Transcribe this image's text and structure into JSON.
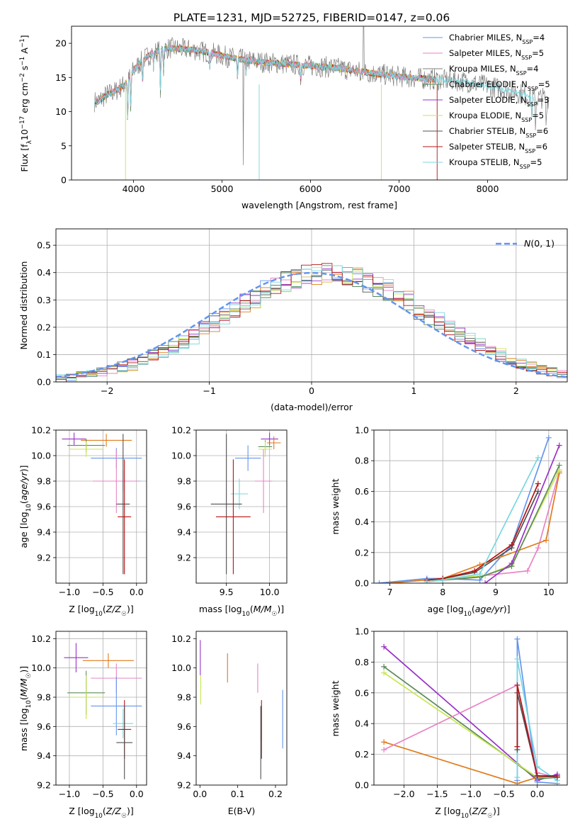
{
  "colors": {
    "chabrier_miles": "#6495ed",
    "salpeter_miles": "#e883c4",
    "kroupa_miles": "#7f7f7f",
    "chabrier_elodie": "#5b8a5b",
    "salpeter_elodie": "#9a32c8",
    "kroupa_elodie": "#c8e650",
    "chabrier_stelib": "#505050",
    "salpeter_stelib": "#b41414",
    "kroupa_stelib": "#78d7e1",
    "orange": "#e07b1c"
  },
  "chart_data": [
    {
      "id": "spectrum",
      "type": "line",
      "title": "PLATE=1231, MJD=52725, FIBERID=0147, z=0.06",
      "xlabel": "wavelength [Angstrom, rest frame]",
      "ylabel": "Flux [f_λ10^-17 erg cm^-2 s^-1 A^-1]",
      "xlim": [
        3300,
        8900
      ],
      "ylim": [
        0,
        22.5
      ],
      "xticks": [
        4000,
        5000,
        6000,
        7000,
        8000
      ],
      "yticks": [
        0,
        5,
        10,
        15,
        20
      ],
      "legend": "top-right",
      "series": [
        {
          "name": "Chabrier MILES, N",
          "sub": "SSP",
          "suffix": "=4",
          "color_key": "chabrier_miles"
        },
        {
          "name": "Salpeter MILES, N",
          "sub": "SSP",
          "suffix": "=5",
          "color_key": "salpeter_miles"
        },
        {
          "name": "Kroupa MILES, N",
          "sub": "SSP",
          "suffix": "=4",
          "color_key": "kroupa_miles"
        },
        {
          "name": "Chabrier ELODIE, N",
          "sub": "SSP",
          "suffix": "=5",
          "color_key": "chabrier_elodie"
        },
        {
          "name": "Salpeter ELODIE, N",
          "sub": "SSP",
          "suffix": "=3",
          "color_key": "salpeter_elodie"
        },
        {
          "name": "Kroupa ELODIE, N",
          "sub": "SSP",
          "suffix": "=5",
          "color_key": "kroupa_elodie"
        },
        {
          "name": "Chabrier STELIB, N",
          "sub": "SSP",
          "suffix": "=6",
          "color_key": "chabrier_stelib"
        },
        {
          "name": "Salpeter STELIB, N",
          "sub": "SSP",
          "suffix": "=6",
          "color_key": "salpeter_stelib"
        },
        {
          "name": "Kroupa STELIB, N",
          "sub": "SSP",
          "suffix": "=5",
          "color_key": "kroupa_stelib"
        }
      ],
      "continuum": [
        [
          3600,
          11.5
        ],
        [
          3700,
          12.5
        ],
        [
          3800,
          13
        ],
        [
          3900,
          14
        ],
        [
          4000,
          16
        ],
        [
          4100,
          17.5
        ],
        [
          4200,
          18.5
        ],
        [
          4300,
          19
        ],
        [
          4400,
          19.3
        ],
        [
          4500,
          19.2
        ],
        [
          4700,
          19
        ],
        [
          4900,
          18.5
        ],
        [
          5100,
          17.9
        ],
        [
          5300,
          17.5
        ],
        [
          5500,
          17.2
        ],
        [
          5700,
          17
        ],
        [
          5900,
          16.8
        ],
        [
          6100,
          16.6
        ],
        [
          6300,
          16.4
        ],
        [
          6500,
          16
        ],
        [
          6700,
          15.6
        ],
        [
          6900,
          15.3
        ],
        [
          7100,
          15
        ],
        [
          7300,
          14.8
        ],
        [
          7500,
          14.6
        ],
        [
          7700,
          14.5
        ],
        [
          7900,
          14
        ],
        [
          8100,
          13.5
        ],
        [
          8300,
          13
        ],
        [
          8500,
          12
        ]
      ]
    },
    {
      "id": "residuals",
      "type": "line",
      "xlabel": "(data-model)/error",
      "ylabel": "Normed distribution",
      "xlim": [
        -2.5,
        2.5
      ],
      "ylim": [
        0,
        0.56
      ],
      "xticks": [
        -2,
        -1,
        0,
        1,
        2
      ],
      "yticks": [
        0.0,
        0.1,
        0.2,
        0.3,
        0.4,
        0.5
      ],
      "grid": true,
      "legend": "top-right",
      "gaussian_label": "N(0,1)",
      "gaussian_mean": 0,
      "gaussian_sigma": 1,
      "bin_width": 0.1
    },
    {
      "id": "age_vs_Z",
      "type": "scatter",
      "xlabel": "Z [log10(Z/Z☉)]",
      "ylabel": "age  [log10(age/yr)]",
      "xlim": [
        -1.2,
        0.15
      ],
      "ylim": [
        9.0,
        10.2
      ],
      "xticks": [
        -1.0,
        -0.5,
        0.0
      ],
      "yticks": [
        9.2,
        9.4,
        9.6,
        9.8,
        10.0,
        10.2
      ],
      "grid": true,
      "points": [
        {
          "x": -0.93,
          "y": 10.13,
          "xerr": 0.18,
          "yerr": 0.05,
          "color_key": "salpeter_elodie"
        },
        {
          "x": -0.45,
          "y": 10.12,
          "xerr": 0.38,
          "yerr": 0.05,
          "color_key": "orange"
        },
        {
          "x": -0.75,
          "y": 10.08,
          "xerr": 0.28,
          "yerr": 0.05,
          "color_key": "chabrier_elodie"
        },
        {
          "x": -0.75,
          "y": 10.05,
          "xerr": 0.25,
          "yerr": 0.06,
          "color_key": "kroupa_elodie"
        },
        {
          "x": -0.3,
          "y": 9.98,
          "xerr": 0.38,
          "yerr": 0.08,
          "color_key": "chabrier_miles"
        },
        {
          "x": -0.2,
          "y": 9.8,
          "xerr": 0.28,
          "yerr": 0.08,
          "color_key": "kroupa_stelib"
        },
        {
          "x": -0.3,
          "y": 9.8,
          "xerr": 0.35,
          "yerr": 0.25,
          "color_key": "salpeter_miles"
        },
        {
          "x": -0.2,
          "y": 9.62,
          "xerr": 0.1,
          "yerr": 0.55,
          "color_key": "chabrier_stelib"
        },
        {
          "x": -0.18,
          "y": 9.52,
          "xerr": 0.1,
          "yerr": 0.45,
          "color_key": "salpeter_stelib"
        }
      ]
    },
    {
      "id": "age_vs_mass",
      "type": "scatter",
      "xlabel": "mass [log10(M/M☉)]",
      "ylabel": "",
      "xlim": [
        9.15,
        10.2
      ],
      "ylim": [
        9.0,
        10.2
      ],
      "xticks": [
        9.5,
        10.0
      ],
      "yticks": [
        9.2,
        9.4,
        9.6,
        9.8,
        10.0,
        10.2
      ],
      "grid": true,
      "points": [
        {
          "x": 10.0,
          "y": 10.13,
          "xerr": 0.1,
          "yerr": 0.05,
          "color_key": "salpeter_elodie"
        },
        {
          "x": 10.05,
          "y": 10.1,
          "xerr": 0.08,
          "yerr": 0.05,
          "color_key": "orange"
        },
        {
          "x": 9.95,
          "y": 10.07,
          "xerr": 0.08,
          "yerr": 0.05,
          "color_key": "chabrier_elodie"
        },
        {
          "x": 9.95,
          "y": 10.05,
          "xerr": 0.08,
          "yerr": 0.06,
          "color_key": "kroupa_elodie"
        },
        {
          "x": 9.75,
          "y": 9.98,
          "xerr": 0.15,
          "yerr": 0.1,
          "color_key": "chabrier_miles"
        },
        {
          "x": 9.65,
          "y": 9.7,
          "xerr": 0.1,
          "yerr": 0.12,
          "color_key": "kroupa_stelib"
        },
        {
          "x": 9.93,
          "y": 9.8,
          "xerr": 0.1,
          "yerr": 0.25,
          "color_key": "salpeter_miles"
        },
        {
          "x": 9.5,
          "y": 9.62,
          "xerr": 0.18,
          "yerr": 0.55,
          "color_key": "chabrier_stelib"
        },
        {
          "x": 9.58,
          "y": 9.52,
          "xerr": 0.2,
          "yerr": 0.45,
          "color_key": "salpeter_stelib"
        }
      ]
    },
    {
      "id": "massweight_vs_age",
      "type": "line",
      "xlabel": "age  [log10(age/yr)]",
      "ylabel": "mass weight",
      "xlim": [
        6.7,
        10.35
      ],
      "ylim": [
        0.0,
        1.0
      ],
      "xticks": [
        7,
        8,
        9,
        10
      ],
      "yticks": [
        0.0,
        0.2,
        0.4,
        0.6,
        0.8,
        1.0
      ],
      "grid": true,
      "series": [
        {
          "color_key": "chabrier_miles",
          "x": [
            6.8,
            7.7,
            8.0,
            8.7,
            9.3,
            10.0
          ],
          "y": [
            0.0,
            0.03,
            0.03,
            0.02,
            0.25,
            0.95
          ]
        },
        {
          "color_key": "salpeter_miles",
          "x": [
            7.7,
            8.0,
            8.8,
            9.6,
            9.8,
            10.2
          ],
          "y": [
            0.02,
            0.02,
            0.05,
            0.08,
            0.23,
            0.73
          ]
        },
        {
          "color_key": "orange",
          "x": [
            7.0,
            8.0,
            8.7,
            9.95,
            10.2
          ],
          "y": [
            0.0,
            0.03,
            0.12,
            0.28,
            0.72
          ]
        },
        {
          "color_key": "kroupa_elodie",
          "x": [
            7.7,
            8.0,
            8.8,
            9.3,
            10.2
          ],
          "y": [
            0.01,
            0.03,
            0.05,
            0.12,
            0.74
          ]
        },
        {
          "color_key": "chabrier_elodie",
          "x": [
            7.7,
            8.7,
            9.3,
            10.2
          ],
          "y": [
            0.01,
            0.04,
            0.11,
            0.77
          ]
        },
        {
          "color_key": "salpeter_elodie",
          "x": [
            8.8,
            9.3,
            10.2
          ],
          "y": [
            0.0,
            0.13,
            0.9
          ]
        },
        {
          "color_key": "chabrier_stelib",
          "x": [
            7.7,
            8.0,
            8.6,
            9.3,
            9.8
          ],
          "y": [
            0.02,
            0.03,
            0.07,
            0.23,
            0.6
          ]
        },
        {
          "color_key": "salpeter_stelib",
          "x": [
            7.7,
            8.0,
            8.6,
            9.3,
            9.8
          ],
          "y": [
            0.02,
            0.03,
            0.08,
            0.25,
            0.65
          ]
        },
        {
          "color_key": "kroupa_stelib",
          "x": [
            7.7,
            8.0,
            8.7,
            9.8
          ],
          "y": [
            0.01,
            0.02,
            0.06,
            0.82
          ]
        }
      ]
    },
    {
      "id": "mass_vs_Z",
      "type": "scatter",
      "xlabel": "Z [log10(Z/Z☉)]",
      "ylabel": "mass [log10(M/M☉)]",
      "xlim": [
        -1.2,
        0.15
      ],
      "ylim": [
        9.2,
        10.25
      ],
      "xticks": [
        -1.0,
        -0.5,
        0.0
      ],
      "yticks": [
        9.2,
        9.4,
        9.6,
        9.8,
        10.0,
        10.2
      ],
      "grid": true,
      "points": [
        {
          "x": -0.9,
          "y": 10.07,
          "xerr": 0.18,
          "yerr": 0.1,
          "color_key": "salpeter_elodie"
        },
        {
          "x": -0.42,
          "y": 10.05,
          "xerr": 0.38,
          "yerr": 0.05,
          "color_key": "orange"
        },
        {
          "x": -0.3,
          "y": 9.93,
          "xerr": 0.38,
          "yerr": 0.1,
          "color_key": "salpeter_miles"
        },
        {
          "x": -0.75,
          "y": 9.83,
          "xerr": 0.28,
          "yerr": 0.15,
          "color_key": "chabrier_elodie"
        },
        {
          "x": -0.75,
          "y": 9.8,
          "xerr": 0.25,
          "yerr": 0.15,
          "color_key": "kroupa_elodie"
        },
        {
          "x": -0.3,
          "y": 9.74,
          "xerr": 0.38,
          "yerr": 0.2,
          "color_key": "chabrier_miles"
        },
        {
          "x": -0.2,
          "y": 9.62,
          "xerr": 0.15,
          "yerr": 0.1,
          "color_key": "kroupa_stelib"
        },
        {
          "x": -0.18,
          "y": 9.58,
          "xerr": 0.1,
          "yerr": 0.2,
          "color_key": "salpeter_stelib"
        },
        {
          "x": -0.18,
          "y": 9.49,
          "xerr": 0.12,
          "yerr": 0.25,
          "color_key": "chabrier_stelib"
        }
      ]
    },
    {
      "id": "mass_vs_ebv",
      "type": "scatter",
      "xlabel": "E(B-V)",
      "ylabel": "",
      "xlim": [
        -0.01,
        0.23
      ],
      "ylim": [
        9.2,
        10.25
      ],
      "xticks": [
        0.0,
        0.1,
        0.2
      ],
      "xticklabels": [
        "0.0",
        "0.1",
        "0.2"
      ],
      "yticks": [
        9.2,
        9.4,
        9.6,
        9.8,
        10.0,
        10.2
      ],
      "points": [
        {
          "x": 0.001,
          "y": 10.07,
          "xerr": 0,
          "yerr": 0.12,
          "color_key": "salpeter_elodie"
        },
        {
          "x": 0.002,
          "y": 9.85,
          "xerr": 0,
          "yerr": 0.1,
          "color_key": "kroupa_elodie"
        },
        {
          "x": 0.073,
          "y": 10.0,
          "xerr": 0,
          "yerr": 0.1,
          "color_key": "orange"
        },
        {
          "x": 0.153,
          "y": 9.93,
          "xerr": 0,
          "yerr": 0.1,
          "color_key": "salpeter_miles"
        },
        {
          "x": 0.163,
          "y": 9.62,
          "xerr": 0,
          "yerr": 0.12,
          "color_key": "kroupa_stelib"
        },
        {
          "x": 0.163,
          "y": 9.58,
          "xerr": 0,
          "yerr": 0.2,
          "color_key": "salpeter_stelib"
        },
        {
          "x": 0.161,
          "y": 9.49,
          "xerr": 0,
          "yerr": 0.25,
          "color_key": "chabrier_stelib"
        },
        {
          "x": 0.219,
          "y": 9.65,
          "xerr": 0,
          "yerr": 0.2,
          "color_key": "chabrier_miles"
        }
      ]
    },
    {
      "id": "massweight_vs_Z",
      "type": "line",
      "xlabel": "Z [log10(Z/Z☉)]",
      "ylabel": "mass weight",
      "xlim": [
        -2.45,
        0.45
      ],
      "ylim": [
        0.0,
        1.0
      ],
      "xticks": [
        -2.0,
        -1.5,
        -1.0,
        -0.5,
        0.0
      ],
      "xticklabels": [
        "−2.0",
        "−1.5",
        "−1.0",
        "−0.5",
        "0.0"
      ],
      "yticks": [
        0.0,
        0.2,
        0.4,
        0.6,
        0.8,
        1.0
      ],
      "grid": true,
      "series": [
        {
          "color_key": "salpeter_elodie",
          "x": [
            -2.3,
            0.0,
            0.3
          ],
          "y": [
            0.9,
            0.03,
            0.07
          ]
        },
        {
          "color_key": "chabrier_elodie",
          "x": [
            -2.3,
            0.0,
            0.3
          ],
          "y": [
            0.77,
            0.04,
            0.05
          ]
        },
        {
          "color_key": "kroupa_elodie",
          "x": [
            -2.3,
            0.0,
            0.3
          ],
          "y": [
            0.73,
            0.05,
            0.05
          ]
        },
        {
          "color_key": "orange",
          "x": [
            -2.3,
            -0.3,
            0.0,
            0.3
          ],
          "y": [
            0.28,
            0.01,
            0.05,
            0.06
          ]
        },
        {
          "color_key": "salpeter_miles",
          "x": [
            -2.3,
            -0.3,
            0.0,
            0.3
          ],
          "y": [
            0.23,
            0.65,
            0.08,
            0.05
          ]
        },
        {
          "color_key": "chabrier_miles",
          "x": [
            -0.3,
            -0.3,
            0.0,
            0.3
          ],
          "y": [
            0.03,
            0.95,
            0.02,
            0.01
          ]
        },
        {
          "color_key": "kroupa_stelib",
          "x": [
            -0.3,
            -0.3,
            0.0,
            0.3
          ],
          "y": [
            0.05,
            0.82,
            0.12,
            0.03
          ]
        },
        {
          "color_key": "chabrier_stelib",
          "x": [
            -0.3,
            -0.3,
            0.0,
            0.3
          ],
          "y": [
            0.23,
            0.6,
            0.06,
            0.05
          ]
        },
        {
          "color_key": "salpeter_stelib",
          "x": [
            -0.3,
            -0.3,
            0.0,
            0.3
          ],
          "y": [
            0.25,
            0.65,
            0.06,
            0.06
          ]
        }
      ]
    }
  ]
}
